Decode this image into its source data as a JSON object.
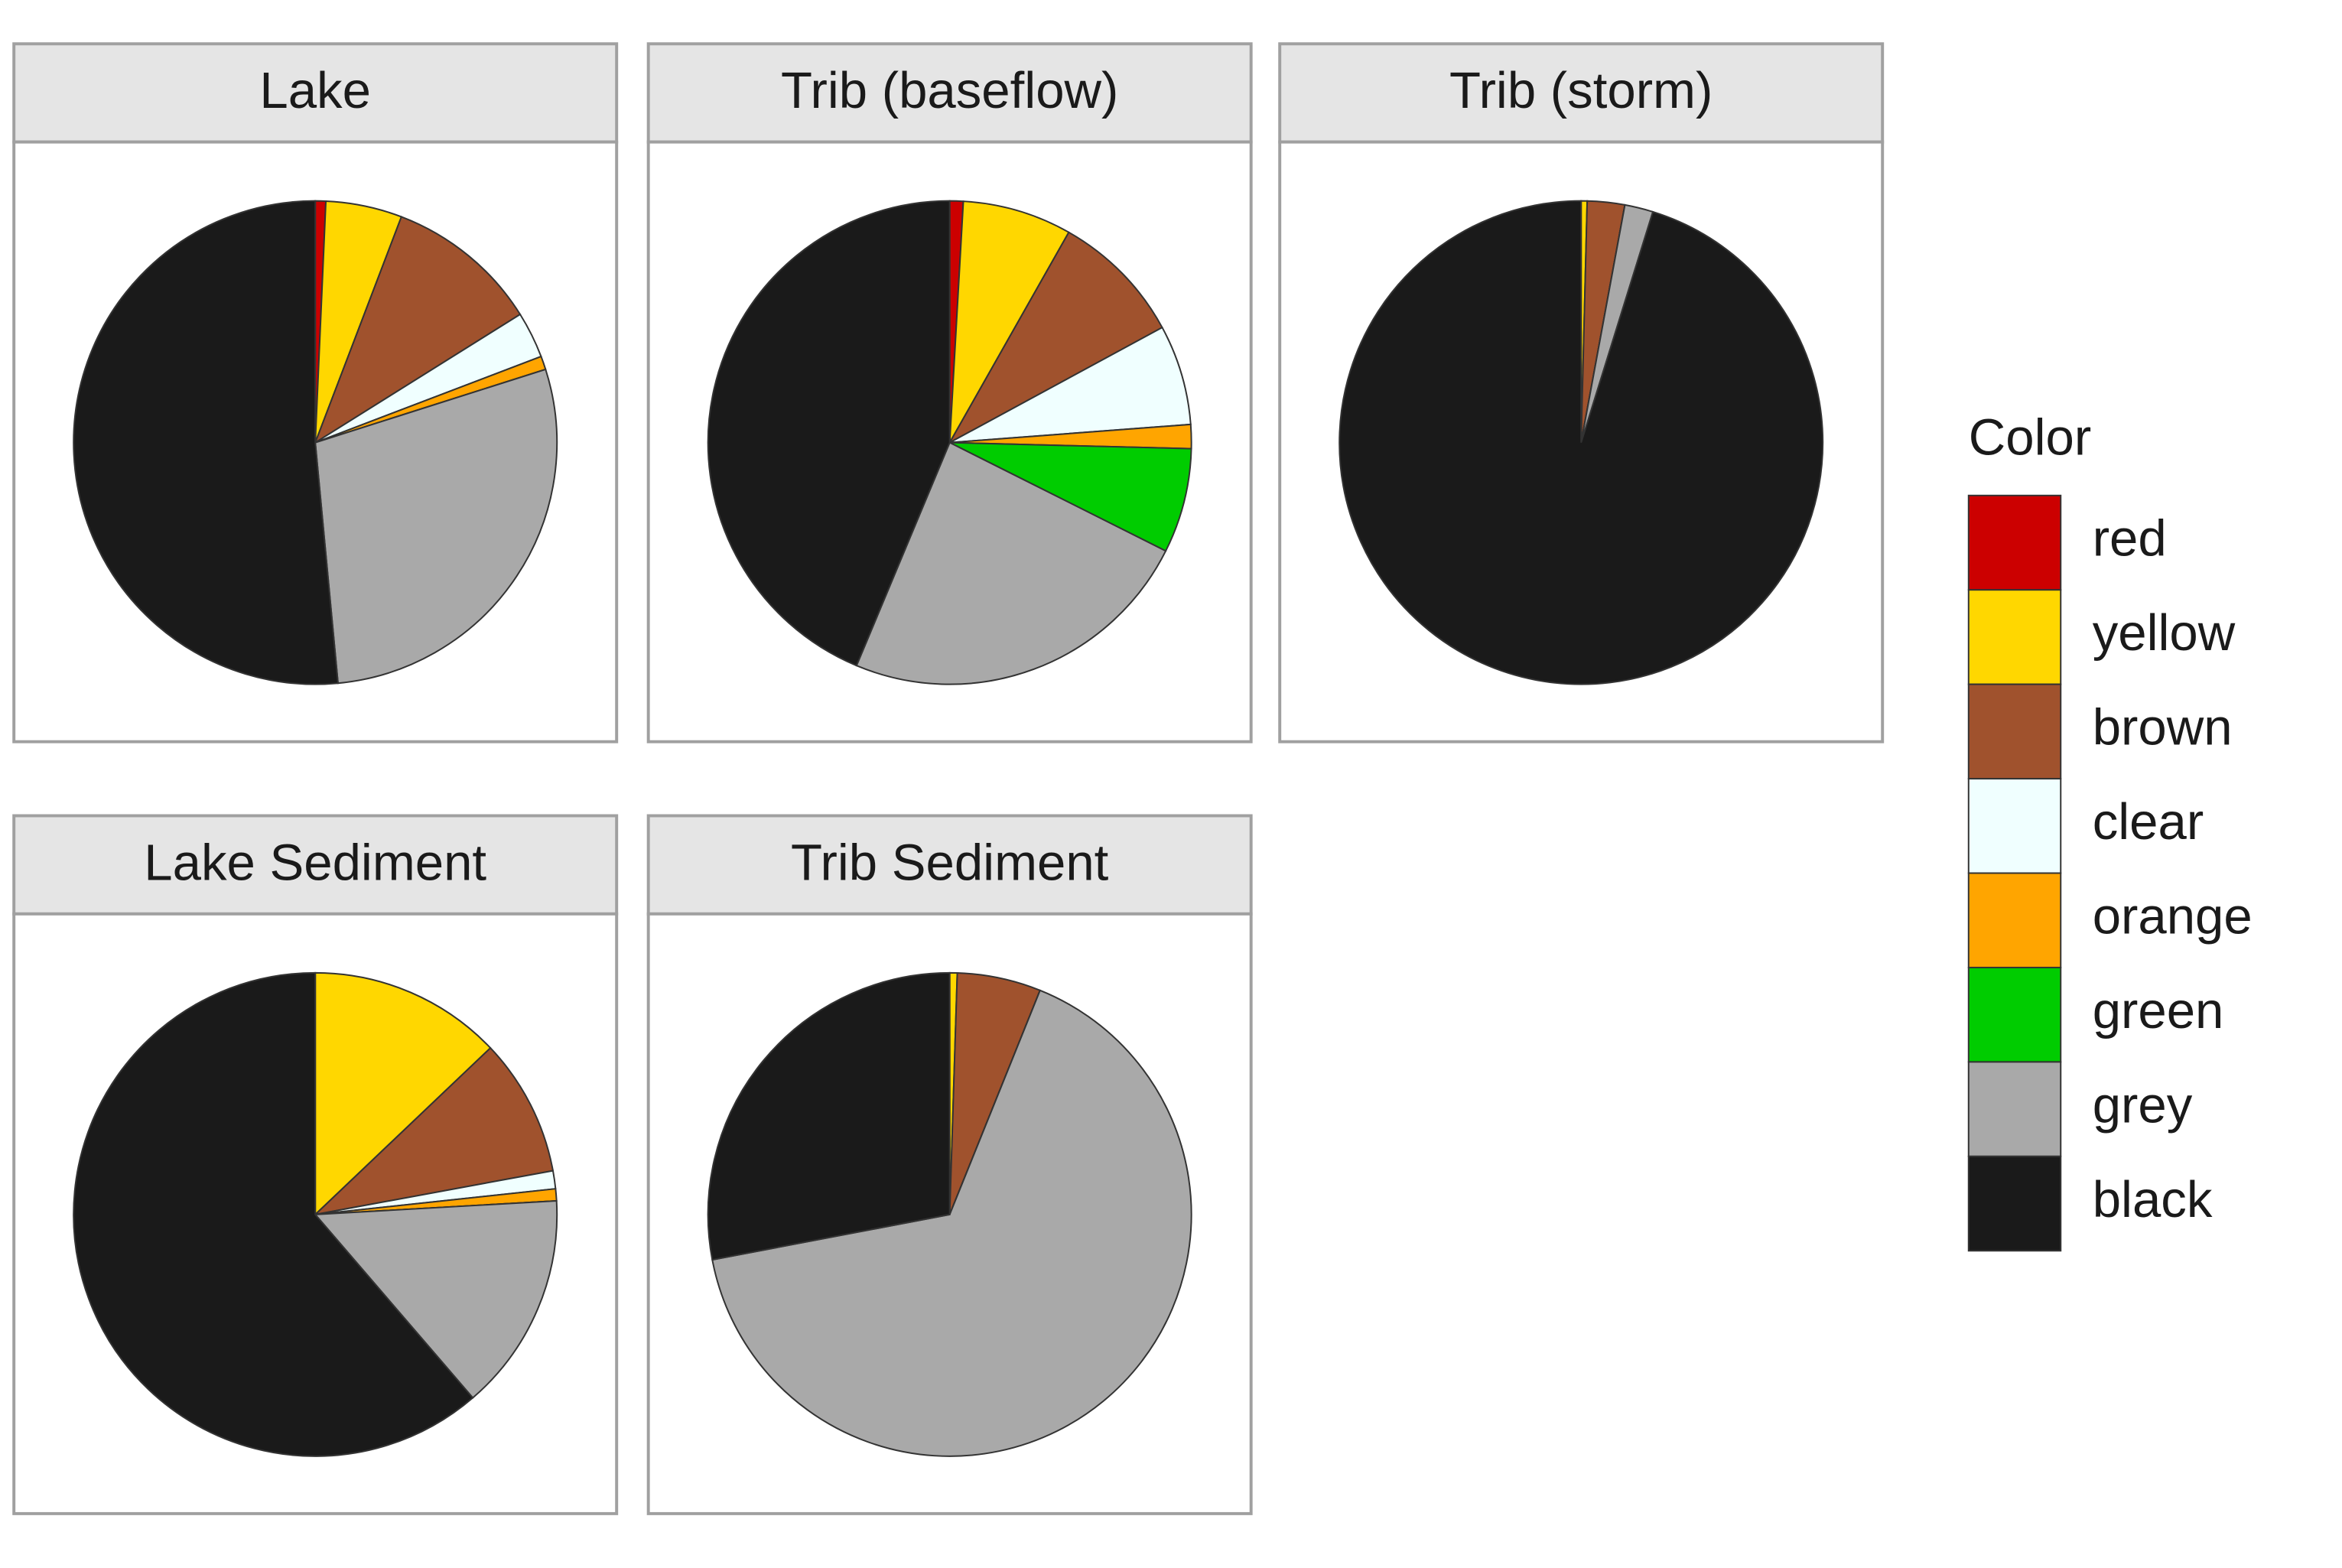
{
  "chart_data": [
    {
      "type": "pie",
      "title": "Lake",
      "values": [
        0.7,
        5.1,
        10.3,
        3.1,
        0.9,
        0,
        28.4,
        51.5
      ]
    },
    {
      "type": "pie",
      "title": "Trib (baseflow)",
      "values": [
        0.9,
        7.3,
        8.9,
        6.7,
        1.6,
        7.0,
        23.9,
        43.7
      ]
    },
    {
      "type": "pie",
      "title": "Trib (storm)",
      "values": [
        0,
        0.4,
        2.5,
        0,
        0,
        0,
        1.9,
        95.2
      ]
    },
    {
      "type": "pie",
      "title": "Lake Sediment",
      "values": [
        0,
        12.9,
        9.2,
        1.2,
        0.8,
        0,
        14.6,
        61.3
      ]
    },
    {
      "type": "pie",
      "title": "Trib Sediment",
      "values": [
        0,
        0.5,
        5.6,
        0,
        0,
        0,
        65.9,
        28.0
      ]
    }
  ],
  "legend": {
    "title": "Color",
    "categories": [
      "red",
      "yellow",
      "brown",
      "clear",
      "orange",
      "green",
      "grey",
      "black"
    ],
    "colors": [
      "#cc0000",
      "#ffd700",
      "#a0522d",
      "#f0ffff",
      "#ffa500",
      "#00cc00",
      "#a9a9a9",
      "#1a1a1a"
    ]
  }
}
